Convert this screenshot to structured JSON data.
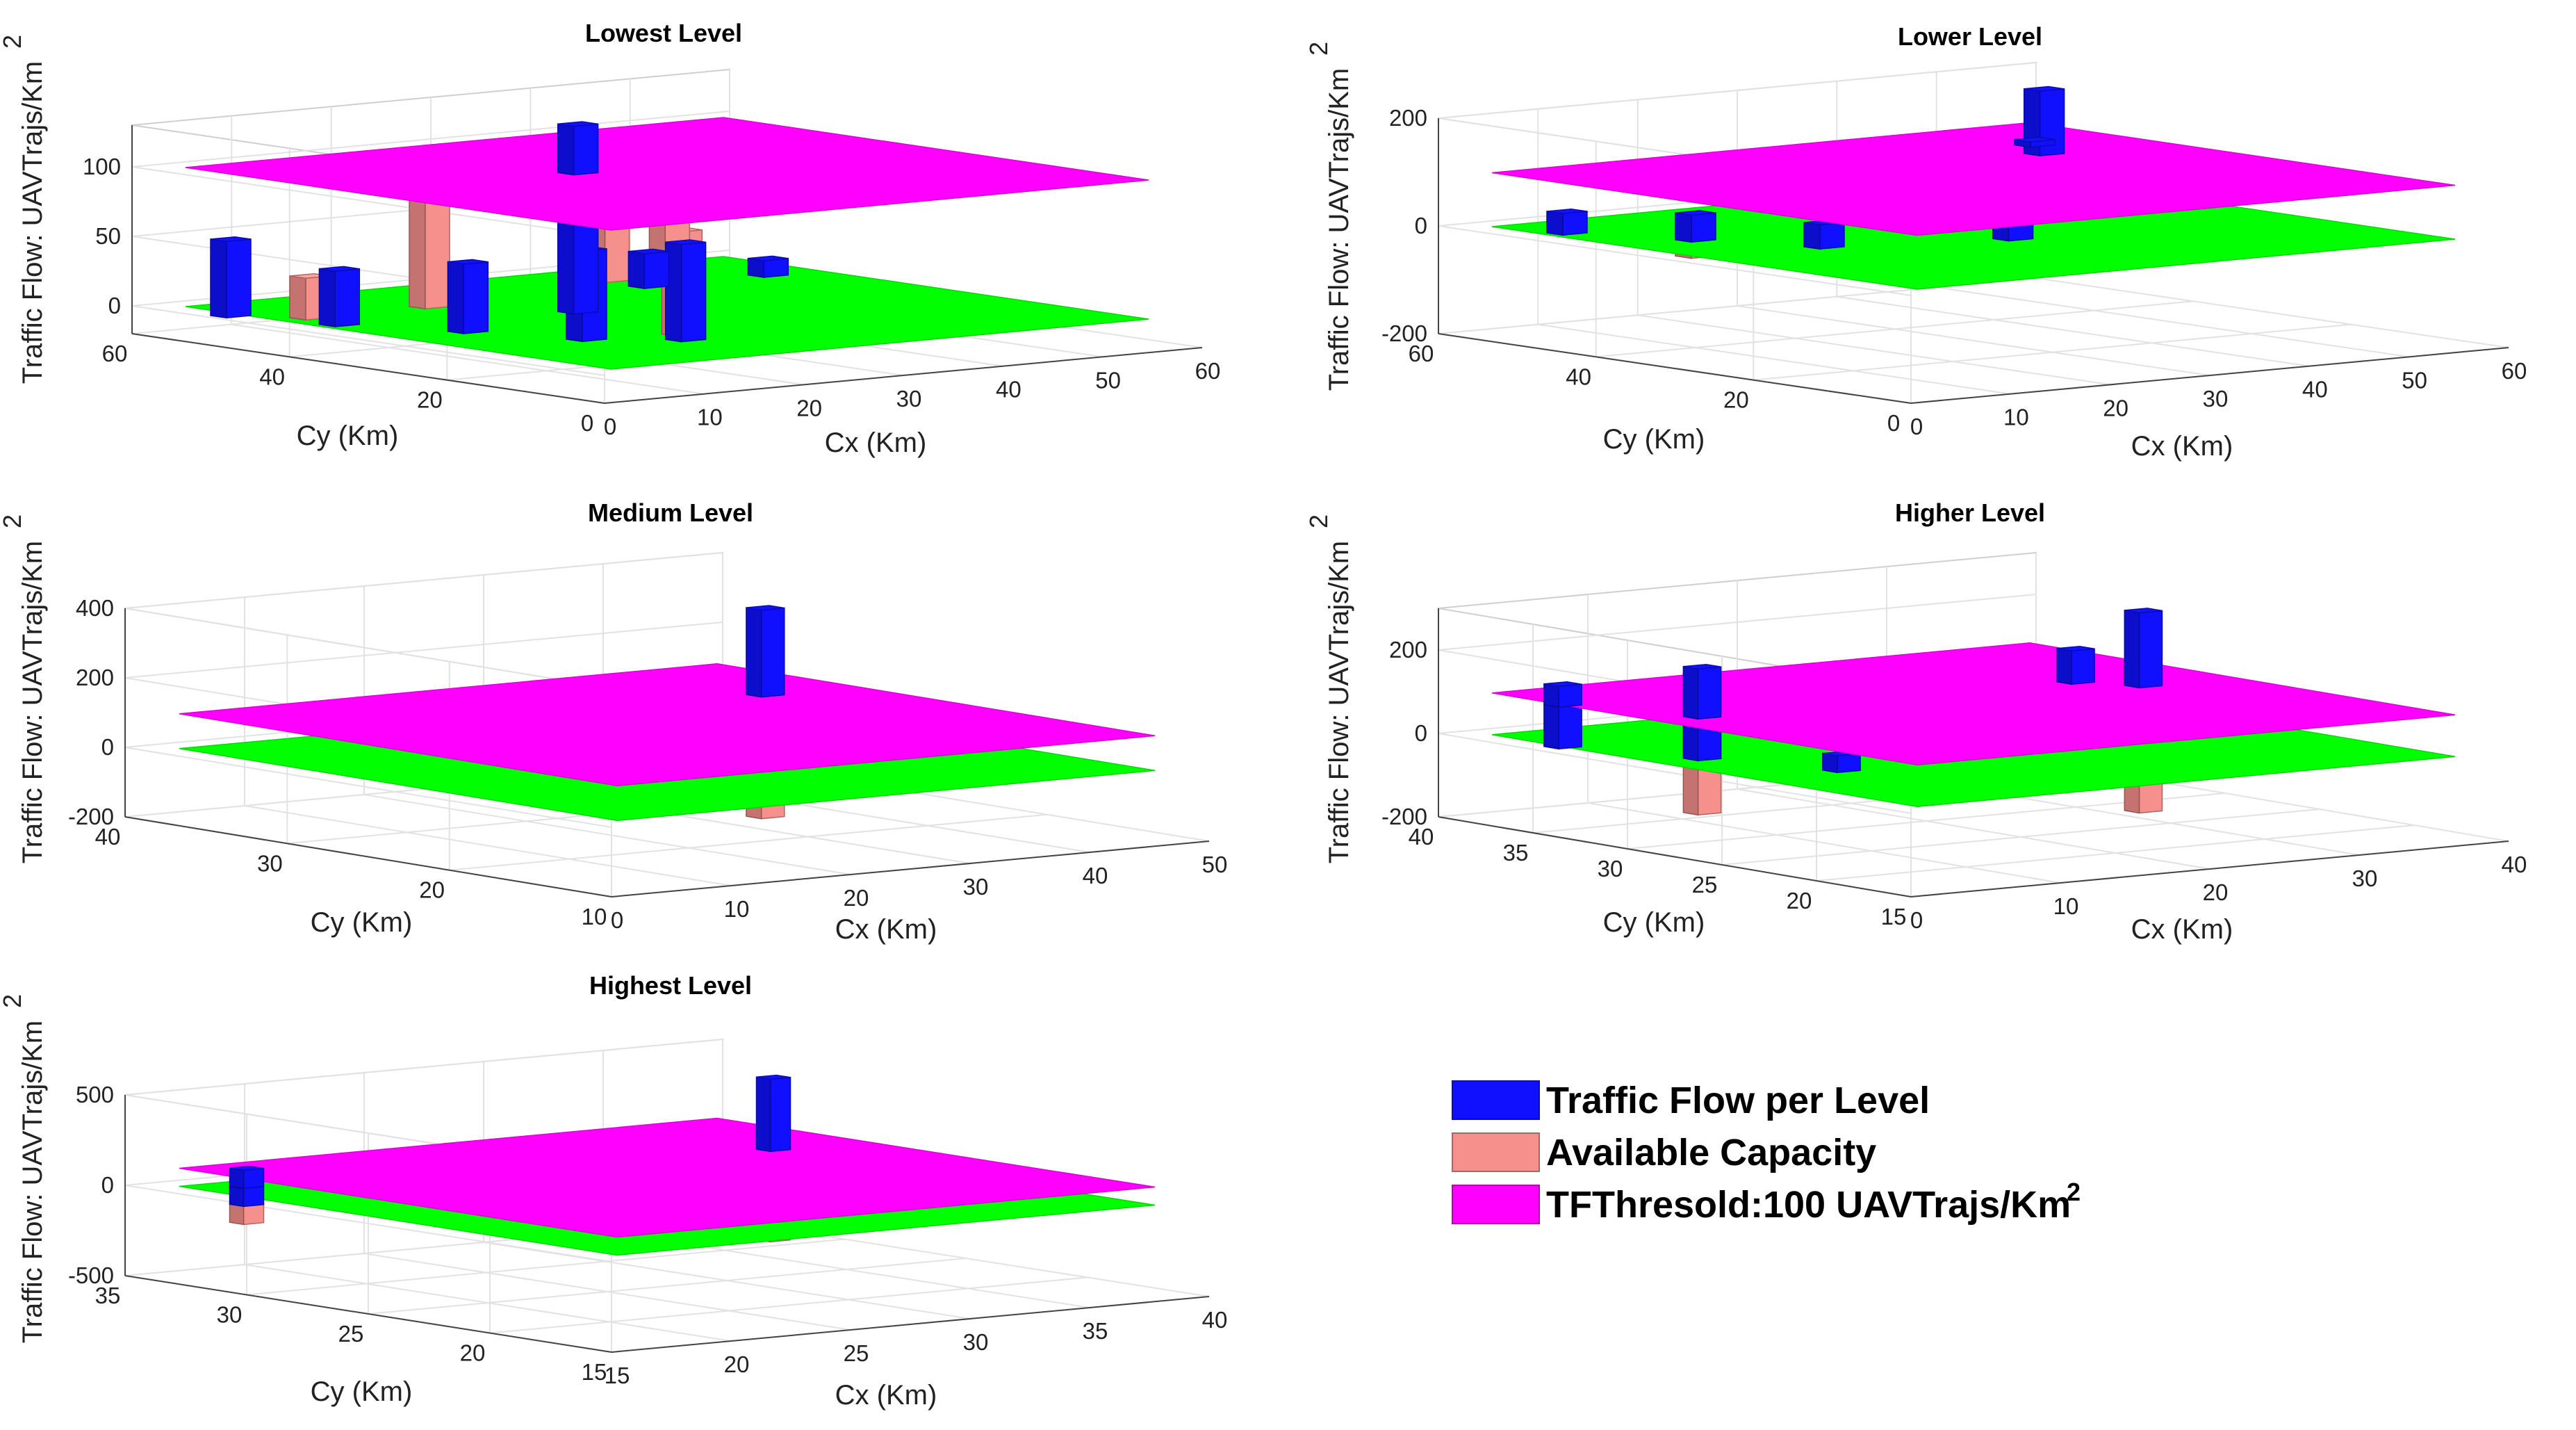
{
  "colors": {
    "traffic_flow": "#1010ff",
    "available_capacity": "#f5908c",
    "threshold_plane": "#ff00ff",
    "ground_plane": "#00ff00",
    "overlap_bar": "#b84a10"
  },
  "chart_data": [
    {
      "type": "bar3d",
      "title": "Lowest Level",
      "xlabel": "Cx (Km)",
      "ylabel": "Cy (Km)",
      "zlabel_main": "Traffic Flow: UAVTrajs/Km",
      "zlabel_sup": "2",
      "x_ticks": [
        "0",
        "10",
        "20",
        "30",
        "40",
        "50",
        "60"
      ],
      "y_ticks": [
        "0",
        "20",
        "40",
        "60"
      ],
      "z_ticks": [
        "0",
        "50",
        "100"
      ],
      "zlim": [
        -20,
        130
      ],
      "threshold": 100,
      "traffic_flow_bars": [
        {
          "cx": 2,
          "cy": 50,
          "z_bottom": 0,
          "z_top": 55
        },
        {
          "cx": 5,
          "cy": 40,
          "z_bottom": 0,
          "z_top": 40
        },
        {
          "cx": 10,
          "cy": 30,
          "z_bottom": 0,
          "z_top": 50
        },
        {
          "cx": 14,
          "cy": 20,
          "z_bottom": 0,
          "z_top": 65
        },
        {
          "cx": 20,
          "cy": 15,
          "z_bottom": 0,
          "z_top": 70
        },
        {
          "cx": 25,
          "cy": 35,
          "z_bottom": 0,
          "z_top": 135
        },
        {
          "cx": 40,
          "cy": 45,
          "z_bottom": 0,
          "z_top": 25
        },
        {
          "cx": 52,
          "cy": 45,
          "z_bottom": 0,
          "z_top": 12
        }
      ],
      "available_capacity_bars": [
        {
          "cx": 6,
          "cy": 45,
          "z_bottom": 0,
          "z_top": 30
        },
        {
          "cx": 22,
          "cy": 18,
          "z_bottom": 0,
          "z_top": 75
        },
        {
          "cx": 18,
          "cy": 45,
          "z_bottom": 0,
          "z_top": 80
        },
        {
          "cx": 40,
          "cy": 50,
          "z_bottom": 0,
          "z_top": 85
        },
        {
          "cx": 50,
          "cy": 55,
          "z_bottom": 0,
          "z_top": 90
        }
      ]
    },
    {
      "type": "bar3d",
      "title": "Lower Level",
      "xlabel": "Cx (Km)",
      "ylabel": "Cy (Km)",
      "zlabel_main": "Traffic Flow: UAVTrajs/Km",
      "zlabel_sup": "2",
      "x_ticks": [
        "0",
        "10",
        "20",
        "30",
        "40",
        "50",
        "60"
      ],
      "y_ticks": [
        "0",
        "20",
        "40",
        "60"
      ],
      "z_ticks": [
        "-200",
        "0",
        "200"
      ],
      "zlim": [
        -200,
        200
      ],
      "threshold": 100,
      "traffic_flow_bars": [
        {
          "cx": 5,
          "cy": 50,
          "z_bottom": 0,
          "z_top": 40
        },
        {
          "cx": 10,
          "cy": 40,
          "z_bottom": 0,
          "z_top": 50
        },
        {
          "cx": 15,
          "cy": 30,
          "z_bottom": 0,
          "z_top": 45
        },
        {
          "cx": 30,
          "cy": 25,
          "z_bottom": 0,
          "z_top": 60
        },
        {
          "cx": 45,
          "cy": 40,
          "z_bottom": 0,
          "z_top": 220
        },
        {
          "cx": 48,
          "cy": 45,
          "z_bottom": 0,
          "z_top": 110
        }
      ],
      "available_capacity_bars": [
        {
          "cx": 45,
          "cy": 40,
          "z_bottom": -120,
          "z_top": 0
        },
        {
          "cx": 10,
          "cy": 40,
          "z_bottom": -30,
          "z_top": 0
        }
      ]
    },
    {
      "type": "bar3d",
      "title": "Medium Level",
      "xlabel": "Cx (Km)",
      "ylabel": "Cy (Km)",
      "zlabel_main": "Traffic Flow: UAVTrajs/Km",
      "zlabel_sup": "2",
      "x_ticks": [
        "0",
        "10",
        "20",
        "30",
        "40",
        "50"
      ],
      "y_ticks": [
        "10",
        "20",
        "30",
        "40"
      ],
      "z_ticks": [
        "-200",
        "0",
        "200",
        "400"
      ],
      "zlim": [
        -200,
        400
      ],
      "threshold": 100,
      "traffic_flow_bars": [
        {
          "cx": 40,
          "cy": 30,
          "z_bottom": 0,
          "z_top": 350
        }
      ],
      "available_capacity_bars": [
        {
          "cx": 40,
          "cy": 30,
          "z_bottom": -250,
          "z_top": 0
        }
      ]
    },
    {
      "type": "bar3d",
      "title": "Higher Level",
      "xlabel": "Cx (Km)",
      "ylabel": "Cy (Km)",
      "zlabel_main": "Traffic Flow: UAVTrajs/Km",
      "zlabel_sup": "2",
      "x_ticks": [
        "0",
        "10",
        "20",
        "30",
        "40"
      ],
      "y_ticks": [
        "15",
        "20",
        "25",
        "30",
        "35",
        "40"
      ],
      "z_ticks": [
        "-200",
        "0",
        "200"
      ],
      "zlim": [
        -200,
        300
      ],
      "threshold": 100,
      "traffic_flow_bars": [
        {
          "cx": 2,
          "cy": 35,
          "z_bottom": 0,
          "z_top": 150
        },
        {
          "cx": 5,
          "cy": 30,
          "z_bottom": 0,
          "z_top": 220
        },
        {
          "cx": 8,
          "cy": 25,
          "z_bottom": 0,
          "z_top": 40
        },
        {
          "cx": 30,
          "cy": 30,
          "z_bottom": 0,
          "z_top": 180
        },
        {
          "cx": 32,
          "cy": 28,
          "z_bottom": 0,
          "z_top": 280
        }
      ],
      "available_capacity_bars": [
        {
          "cx": 5,
          "cy": 30,
          "z_bottom": -130,
          "z_top": 0
        },
        {
          "cx": 32,
          "cy": 28,
          "z_bottom": -200,
          "z_top": 0
        }
      ]
    },
    {
      "type": "bar3d",
      "title": "Highest Level",
      "xlabel": "Cx (Km)",
      "ylabel": "Cy (Km)",
      "zlabel_main": "Traffic Flow: UAVTrajs/Km",
      "zlabel_sup": "2",
      "x_ticks": [
        "15",
        "20",
        "25",
        "30",
        "35",
        "40"
      ],
      "y_ticks": [
        "15",
        "20",
        "25",
        "30",
        "35"
      ],
      "z_ticks": [
        "-500",
        "0",
        "500"
      ],
      "zlim": [
        -500,
        500
      ],
      "threshold": 100,
      "traffic_flow_bars": [
        {
          "cx": 15,
          "cy": 30,
          "z_bottom": 0,
          "z_top": 200
        },
        {
          "cx": 35,
          "cy": 28,
          "z_bottom": 0,
          "z_top": 500
        }
      ],
      "available_capacity_bars": [
        {
          "cx": 15,
          "cy": 30,
          "z_bottom": -100,
          "z_top": 0
        },
        {
          "cx": 35,
          "cy": 28,
          "z_bottom": -400,
          "z_top": 0
        }
      ]
    }
  ],
  "legend": {
    "items": [
      {
        "label": "Traffic Flow per Level",
        "label_sup": "",
        "color_key": "traffic_flow"
      },
      {
        "label": "Available Capacity",
        "label_sup": "",
        "color_key": "available_capacity"
      },
      {
        "label": "TFThresold:100 UAVTrajs/Km",
        "label_sup": "2",
        "color_key": "threshold_plane"
      }
    ]
  }
}
